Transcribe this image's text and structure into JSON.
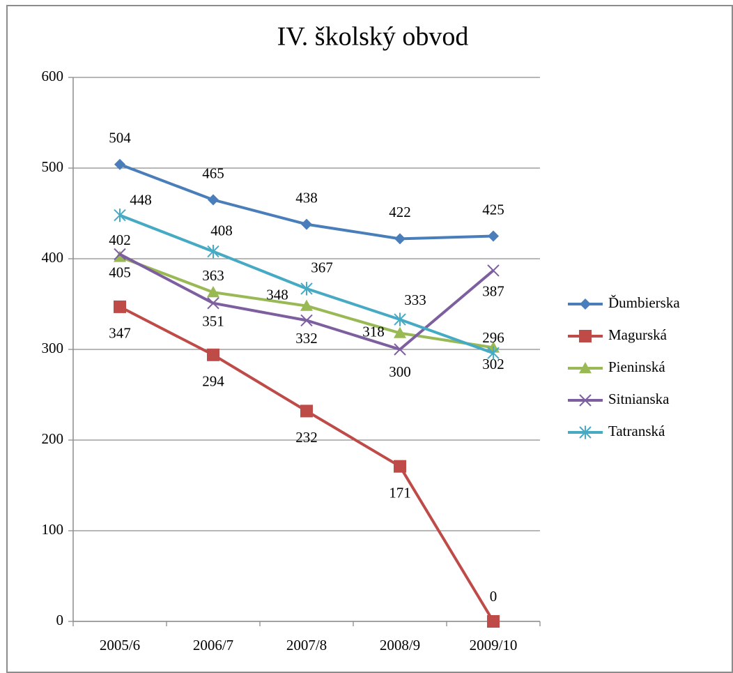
{
  "chart_data": {
    "type": "line",
    "title": "IV. školský obvod",
    "categories": [
      "2005/6",
      "2006/7",
      "2007/8",
      "2008/9",
      "2009/10"
    ],
    "series": [
      {
        "name": "Ďumbierska",
        "color": "#4a7ebb",
        "marker": "diamond",
        "values": [
          504,
          465,
          438,
          422,
          425
        ]
      },
      {
        "name": "Magurská",
        "color": "#be4b48",
        "marker": "square",
        "values": [
          347,
          294,
          232,
          171,
          0
        ]
      },
      {
        "name": "Pieninská",
        "color": "#98b954",
        "marker": "triangle",
        "values": [
          402,
          363,
          348,
          318,
          302
        ]
      },
      {
        "name": "Sitnianska",
        "color": "#7d5fa0",
        "marker": "x",
        "values": [
          405,
          351,
          332,
          300,
          387
        ]
      },
      {
        "name": "Tatranská",
        "color": "#46aac5",
        "marker": "star",
        "values": [
          448,
          408,
          367,
          333,
          296
        ]
      }
    ],
    "ylim": [
      0,
      600
    ],
    "yticks": [
      0,
      100,
      200,
      300,
      400,
      500,
      600
    ],
    "grid": true,
    "legend": "right"
  }
}
